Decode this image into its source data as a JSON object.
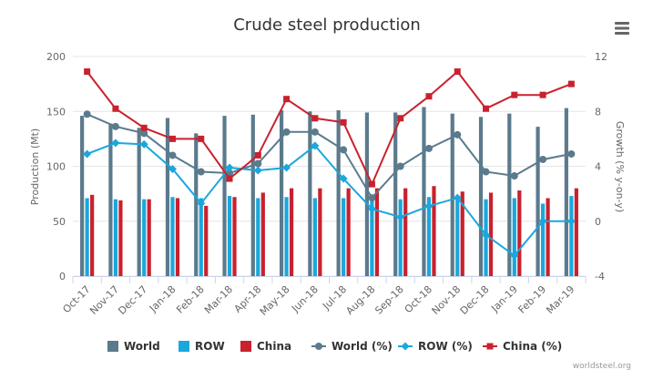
{
  "chart_data": {
    "type": "bar",
    "title": "Crude steel production",
    "ylabel": "Production (Mt)",
    "y2label": "Growth (% y-on-y)",
    "ylim": [
      0,
      200
    ],
    "y2lim": [
      -4,
      12
    ],
    "yticks": [
      "0",
      "50",
      "100",
      "150",
      "200"
    ],
    "y2ticks": [
      "-4",
      "0",
      "4",
      "8",
      "12"
    ],
    "categories": [
      "Oct-17",
      "Nov-17",
      "Dec-17",
      "Jan-18",
      "Feb-18",
      "Mar-18",
      "Apr-18",
      "May-18",
      "Jun-18",
      "Jul-18",
      "Aug-18",
      "Sep-18",
      "Oct-18",
      "Nov-18",
      "Dec-18",
      "Jan-19",
      "Feb-19",
      "Mar-19"
    ],
    "bar_series": [
      {
        "name": "World",
        "color": "#5b7a8c",
        "values": [
          146,
          139,
          135,
          144,
          130,
          146,
          147,
          151,
          150,
          151,
          149,
          149,
          154,
          148,
          145,
          148,
          136,
          153
        ]
      },
      {
        "name": "ROW",
        "color": "#1aa7dc",
        "values": [
          71,
          70,
          70,
          72,
          71,
          73,
          71,
          72,
          71,
          71,
          69,
          70,
          72,
          71,
          70,
          71,
          66,
          73
        ]
      },
      {
        "name": "China",
        "color": "#c9212e",
        "values": [
          74,
          69,
          70,
          71,
          64,
          72,
          76,
          80,
          80,
          80,
          80,
          80,
          82,
          77,
          76,
          78,
          71,
          80
        ]
      }
    ],
    "line_series": [
      {
        "name": "World (%)",
        "color": "#5b7a8c",
        "marker": "circle",
        "values": [
          7.8,
          6.9,
          6.4,
          4.8,
          3.6,
          3.5,
          4.2,
          6.5,
          6.5,
          5.2,
          1.7,
          4.0,
          5.3,
          6.3,
          3.6,
          3.3,
          4.5,
          4.9
        ]
      },
      {
        "name": "ROW (%)",
        "color": "#1aa7dc",
        "marker": "diamond",
        "values": [
          4.9,
          5.7,
          5.6,
          3.8,
          1.3,
          3.9,
          3.7,
          3.9,
          5.5,
          3.1,
          0.9,
          0.3,
          1.1,
          1.7,
          -1.0,
          -2.5,
          0.0,
          0.0
        ]
      },
      {
        "name": "China (%)",
        "color": "#c9212e",
        "marker": "square",
        "values": [
          10.9,
          8.2,
          6.8,
          6.0,
          6.0,
          3.1,
          4.8,
          8.9,
          7.5,
          7.2,
          2.7,
          7.5,
          9.1,
          10.9,
          8.2,
          9.2,
          9.2,
          10.0
        ]
      }
    ],
    "legend_position": "bottom",
    "grid": true
  },
  "credit": "worldsteel.org",
  "menu_icon": "hamburger-icon"
}
